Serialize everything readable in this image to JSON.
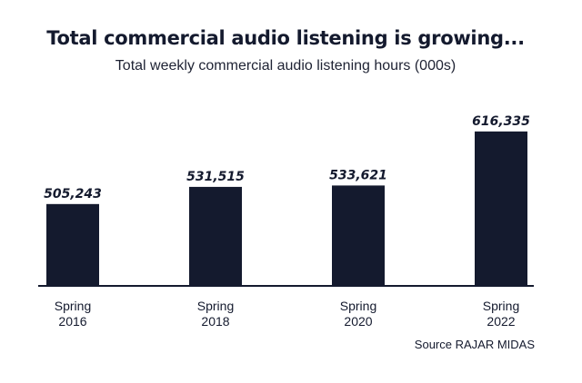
{
  "chart_data": {
    "type": "bar",
    "title": "Total commercial audio listening is growing...",
    "subtitle": "Total weekly commercial audio listening hours (000s)",
    "categories": [
      [
        "Spring",
        "2016"
      ],
      [
        "Spring",
        "2018"
      ],
      [
        "Spring",
        "2020"
      ],
      [
        "Spring",
        "2022"
      ]
    ],
    "values": [
      505243,
      531515,
      533621,
      616335
    ],
    "value_labels": [
      "505,243",
      "531,515",
      "533,621",
      "616,335"
    ],
    "xlabel": "",
    "ylabel": "",
    "ylim": [
      380000,
      630000
    ],
    "grid": false,
    "legend": "none",
    "colors": {
      "bar": "#141a2e",
      "text": "#141a2e",
      "axis": "#141a2e"
    },
    "source": "Source RAJAR MIDAS"
  }
}
